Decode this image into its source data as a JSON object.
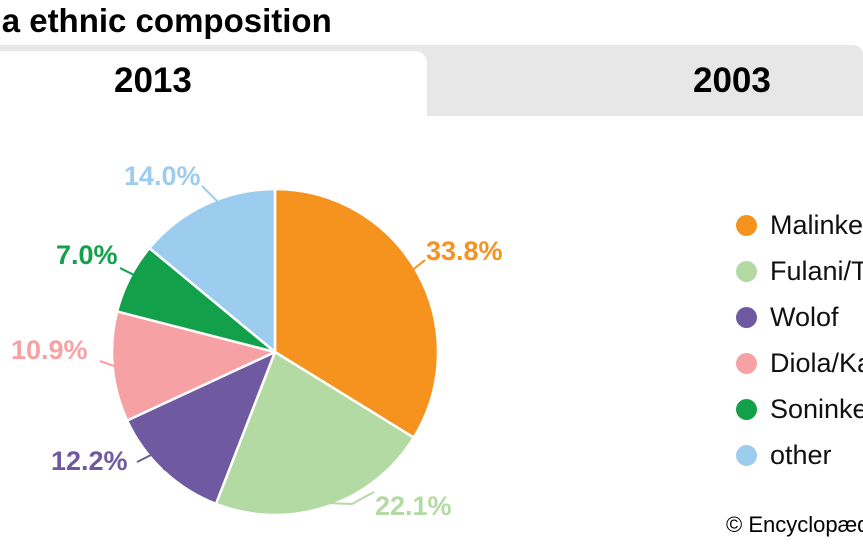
{
  "title": "Gambia ethnic composition",
  "tabs": [
    {
      "label": "2013",
      "active": true
    },
    {
      "label": "2003",
      "active": false
    }
  ],
  "attribution": "© Encyclopædia Britannica, Inc.",
  "ui_colors": {
    "tab_inactive_bg": "#e7e7e7",
    "tab_active_bg": "#ffffff",
    "text": "#000000"
  },
  "chart_data": {
    "type": "pie",
    "title": "Gambia ethnic composition",
    "year_shown": "2013",
    "start_angle": "12 o'clock",
    "direction": "clockwise",
    "legend_position": "right",
    "slices": [
      {
        "label": "Malinke",
        "value": 33.8,
        "display": "33.8%",
        "color": "#f6921e"
      },
      {
        "label": "Fulani/Tukulor",
        "value": 22.1,
        "display": "22.1%",
        "color": "#b3daa2"
      },
      {
        "label": "Wolof",
        "value": 12.2,
        "display": "12.2%",
        "color": "#6f5aa2"
      },
      {
        "label": "Diola/Karoninka",
        "value": 10.9,
        "display": "10.9%",
        "color": "#f6a2a4"
      },
      {
        "label": "Soninke",
        "value": 7.0,
        "display": "7.0%",
        "color": "#13a04a"
      },
      {
        "label": "other",
        "value": 14.0,
        "display": "14.0%",
        "color": "#9ccdee"
      }
    ]
  }
}
